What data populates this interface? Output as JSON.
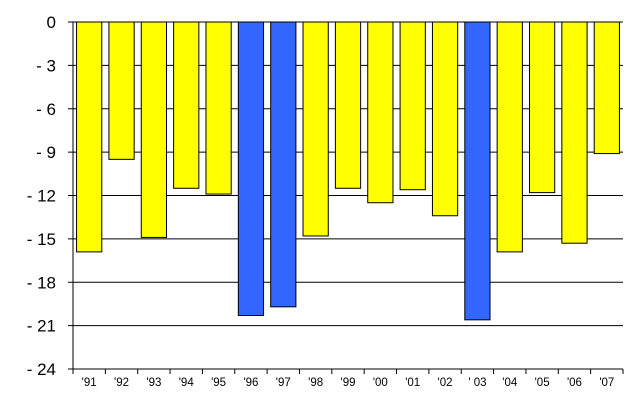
{
  "chart_data": {
    "type": "bar",
    "categories": [
      "'91",
      "'92",
      "'93",
      "'94",
      "'95",
      "'96",
      "'97",
      "'98",
      "'99",
      "'00",
      "'01",
      "'02",
      "' 03",
      "'04",
      "'05",
      "'06",
      "'07"
    ],
    "values": [
      -15.9,
      -9.5,
      -14.9,
      -11.5,
      -11.9,
      -20.3,
      -19.7,
      -14.8,
      -11.5,
      -12.5,
      -11.6,
      -13.4,
      -20.6,
      -15.9,
      -11.8,
      -15.3,
      -9.1
    ],
    "bar_colors": [
      "#ffff00",
      "#ffff00",
      "#ffff00",
      "#ffff00",
      "#ffff00",
      "#3366ff",
      "#3366ff",
      "#ffff00",
      "#ffff00",
      "#ffff00",
      "#ffff00",
      "#ffff00",
      "#3366ff",
      "#ffff00",
      "#ffff00",
      "#ffff00",
      "#ffff00"
    ],
    "bar_outline_color": "#000000",
    "ylim": [
      -24,
      0
    ],
    "yticks": [
      0,
      -3,
      -6,
      -9,
      -12,
      -15,
      -18,
      -21,
      -24
    ],
    "ytick_labels": [
      "0",
      "- 3",
      "- 6",
      "- 9",
      "- 12",
      "- 15",
      "- 18",
      "- 21",
      "- 24"
    ],
    "grid": true,
    "title": "",
    "xlabel": "",
    "ylabel": ""
  }
}
